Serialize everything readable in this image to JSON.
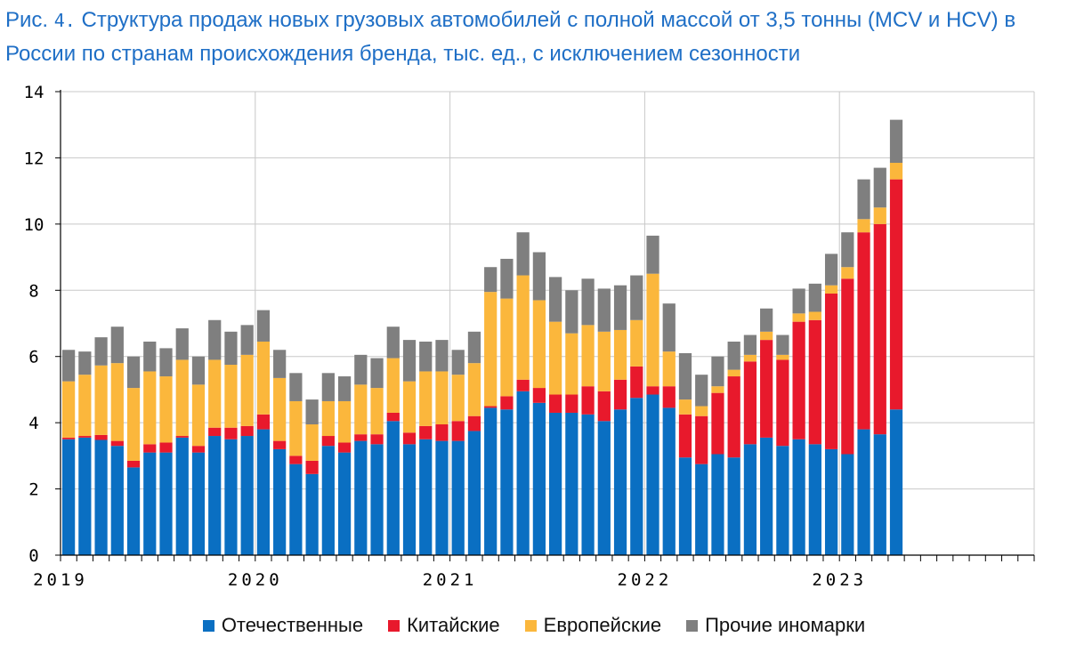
{
  "header": {
    "fig_prefix": "Рис.",
    "fig_number": "4.",
    "title": "Структура продаж новых грузовых автомобилей с полной массой от 3,5 тонны (MCV и HCV) в России по странам происхождения бренда, тыс. ед., с исключением сезонности"
  },
  "chart_data": {
    "type": "bar",
    "stacked": true,
    "title": "Структура продаж новых грузовых автомобилей с полной массой от 3,5 тонны (MCV и HCV) в России по странам происхождения бренда, тыс. ед., с исключением сезонности",
    "xlabel": "",
    "ylabel": "",
    "ylim": [
      0,
      14
    ],
    "yticks": [
      "0",
      "2",
      "4",
      "6",
      "8",
      "10",
      "12",
      "14"
    ],
    "xticks": [
      "2019",
      "2020",
      "2021",
      "2022",
      "2023"
    ],
    "xtick_start_index": [
      0,
      12,
      24,
      36,
      48
    ],
    "grid": true,
    "legend_position": "bottom",
    "months_total": 60,
    "series": [
      {
        "name": "Отечественные",
        "color": "#0a6fc2",
        "values": [
          3.5,
          3.55,
          3.48,
          3.3,
          2.65,
          3.1,
          3.1,
          3.55,
          3.1,
          3.6,
          3.5,
          3.6,
          3.8,
          3.2,
          2.75,
          2.45,
          3.3,
          3.1,
          3.45,
          3.35,
          4.05,
          3.35,
          3.5,
          3.45,
          3.45,
          3.75,
          4.45,
          4.4,
          4.95,
          4.6,
          4.3,
          4.3,
          4.25,
          4.05,
          4.4,
          4.75,
          4.85,
          4.45,
          2.95,
          2.75,
          3.05,
          2.95,
          3.35,
          3.55,
          3.3,
          3.5,
          3.35,
          3.2,
          3.05,
          3.8,
          3.65,
          4.4
        ]
      },
      {
        "name": "Китайские",
        "color": "#e8192c",
        "values": [
          0.05,
          0.05,
          0.15,
          0.15,
          0.2,
          0.25,
          0.3,
          0.05,
          0.2,
          0.25,
          0.35,
          0.3,
          0.45,
          0.25,
          0.25,
          0.4,
          0.3,
          0.3,
          0.2,
          0.3,
          0.25,
          0.35,
          0.4,
          0.5,
          0.6,
          0.45,
          0.05,
          0.4,
          0.35,
          0.45,
          0.55,
          0.55,
          0.85,
          0.9,
          0.9,
          0.95,
          0.25,
          0.65,
          1.3,
          1.45,
          1.85,
          2.45,
          2.5,
          2.95,
          2.6,
          3.55,
          3.75,
          4.7,
          5.3,
          5.95,
          6.35,
          6.95
        ]
      },
      {
        "name": "Европейские",
        "color": "#fbb73c",
        "values": [
          1.7,
          1.85,
          2.1,
          2.35,
          2.2,
          2.2,
          2.0,
          2.3,
          1.85,
          2.05,
          1.9,
          2.15,
          2.2,
          1.9,
          1.65,
          1.1,
          1.05,
          1.25,
          1.5,
          1.4,
          1.65,
          1.55,
          1.65,
          1.6,
          1.4,
          1.6,
          3.45,
          2.95,
          3.15,
          2.65,
          2.2,
          1.85,
          1.85,
          1.8,
          1.5,
          1.4,
          3.4,
          1.05,
          0.45,
          0.3,
          0.2,
          0.2,
          0.2,
          0.25,
          0.15,
          0.25,
          0.25,
          0.25,
          0.35,
          0.4,
          0.5,
          0.5
        ]
      },
      {
        "name": "Прочие иномарки",
        "color": "#7f7f7f",
        "values": [
          0.95,
          0.7,
          0.85,
          1.1,
          0.95,
          0.9,
          0.85,
          0.95,
          0.85,
          1.2,
          1.0,
          0.9,
          0.95,
          0.85,
          0.85,
          0.75,
          0.85,
          0.75,
          0.9,
          0.9,
          0.95,
          1.25,
          0.9,
          0.95,
          0.75,
          0.95,
          0.75,
          1.2,
          1.3,
          1.45,
          1.35,
          1.3,
          1.4,
          1.3,
          1.35,
          1.35,
          1.15,
          1.45,
          1.4,
          0.95,
          0.9,
          0.85,
          0.6,
          0.7,
          0.6,
          0.75,
          0.85,
          0.95,
          1.05,
          1.2,
          1.2,
          1.3
        ]
      }
    ]
  }
}
